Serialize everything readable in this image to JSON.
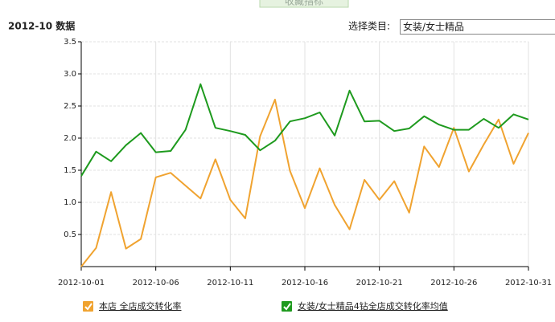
{
  "tab": {
    "label": "收藏指标"
  },
  "header": {
    "title": "2012-10 数据"
  },
  "selector": {
    "label": "选择类目:",
    "value": "女装/女士精品"
  },
  "chart_data": {
    "type": "line",
    "categories": [
      "2012-10-01",
      null,
      null,
      null,
      null,
      "2012-10-06",
      null,
      null,
      null,
      null,
      "2012-10-11",
      null,
      null,
      null,
      null,
      "2012-10-16",
      null,
      null,
      null,
      null,
      "2012-10-21",
      null,
      null,
      null,
      null,
      "2012-10-26",
      null,
      null,
      null,
      null,
      "2012-10-31"
    ],
    "series": [
      {
        "name": "本店 全店成交转化率",
        "color": "#f0a330",
        "values": [
          0.0,
          0.29,
          1.16,
          0.28,
          0.43,
          1.39,
          1.46,
          1.26,
          1.06,
          1.67,
          1.04,
          0.75,
          2.03,
          2.6,
          1.49,
          0.91,
          1.53,
          0.96,
          0.58,
          1.35,
          1.04,
          1.33,
          0.84,
          1.87,
          1.55,
          2.16,
          1.48,
          1.9,
          2.29,
          1.6,
          2.08
        ]
      },
      {
        "name": "女装/女士精品4钻全店成交转化率均值",
        "color": "#1e9a1e",
        "values": [
          1.41,
          1.79,
          1.64,
          1.89,
          2.08,
          1.78,
          1.8,
          2.13,
          2.84,
          2.16,
          2.11,
          2.05,
          1.81,
          1.96,
          2.26,
          2.31,
          2.4,
          2.04,
          2.74,
          2.26,
          2.27,
          2.11,
          2.15,
          2.34,
          2.21,
          2.13,
          2.13,
          2.3,
          2.16,
          2.37,
          2.29
        ]
      }
    ],
    "ylim": [
      0,
      3.5
    ],
    "yticks": [
      0.5,
      {
        "value": 1,
        "label": "1.0"
      },
      1.5,
      {
        "value": 2,
        "label": "2.0"
      },
      2.5,
      {
        "value": 3,
        "label": "3.0"
      },
      3.5
    ],
    "grid": true
  }
}
